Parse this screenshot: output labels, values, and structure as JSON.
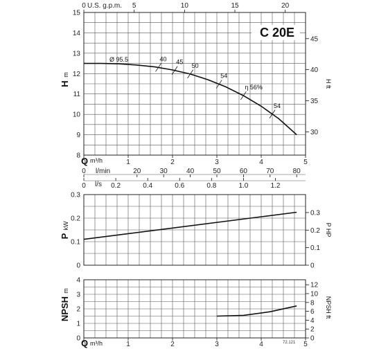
{
  "chart_data": [
    {
      "type": "line",
      "model_label": "C 20E",
      "secondary_axis_top_label": "U.S. g.p.m.",
      "secondary_axis_top_ticks": [
        "0",
        "5",
        "10",
        "15",
        "20"
      ],
      "ylabel": "H",
      "ylabel_unit": "m",
      "right_ylabel": "H ft",
      "ylim": [
        8,
        15
      ],
      "yticks": [
        "8",
        "9",
        "10",
        "11",
        "12",
        "13",
        "14",
        "15"
      ],
      "right_yticks": [
        "30",
        "35",
        "40",
        "45"
      ],
      "impeller_label": "Ø 95.5",
      "efficiency_labels": [
        "40",
        "45",
        "50",
        "54",
        "η 56%",
        "54"
      ],
      "series": [
        {
          "x": [
            0,
            0.4,
            0.8,
            1.2,
            1.6,
            2.0,
            2.4,
            2.8,
            3.2,
            3.6,
            4.0,
            4.4,
            4.8
          ],
          "values": [
            12.5,
            12.5,
            12.48,
            12.42,
            12.33,
            12.18,
            11.98,
            11.7,
            11.35,
            10.92,
            10.4,
            9.78,
            9.0
          ]
        }
      ]
    },
    {
      "type": "line",
      "flow_axis_label": "Q",
      "flow_axis_unit": "m³/h",
      "flow_ticks": [
        "0",
        "1",
        "2",
        "3",
        "4",
        "5"
      ],
      "lmin_axis_label": "l/min",
      "lmin_ticks": [
        "0",
        "20",
        "30",
        "40",
        "50",
        "60",
        "70",
        "80"
      ],
      "ls_axis_label": "l/s",
      "ls_ticks": [
        "0",
        "0.2",
        "0.4",
        "0.6",
        "0.8",
        "1.0",
        "1.2"
      ]
    },
    {
      "type": "line",
      "ylabel": "P",
      "ylabel_unit": "kW",
      "right_ylabel": "P HP",
      "ylim": [
        0,
        0.3
      ],
      "yticks": [
        "0",
        "0.1",
        "0.2",
        "0.3"
      ],
      "right_yticks": [
        "0",
        "0.1",
        "0.2",
        "0.3"
      ],
      "series": [
        {
          "x": [
            0,
            4.8
          ],
          "values": [
            0.11,
            0.225
          ]
        }
      ]
    },
    {
      "type": "line",
      "ylabel": "NPSH",
      "ylabel_unit": "m",
      "right_ylabel": "NPSH ft",
      "ylim": [
        0,
        4
      ],
      "yticks": [
        "0",
        "1",
        "2",
        "3",
        "4"
      ],
      "right_yticks": [
        "0",
        "2",
        "4",
        "6",
        "8",
        "10",
        "12"
      ],
      "xlabel": "Q",
      "xlabel_unit": "m³/h",
      "xticks": [
        "0",
        "1",
        "2",
        "3",
        "4",
        "5"
      ],
      "series": [
        {
          "x": [
            3.0,
            3.6,
            4.2,
            4.8
          ],
          "values": [
            1.5,
            1.55,
            1.8,
            2.2
          ]
        }
      ],
      "code_label": "72.121"
    }
  ]
}
